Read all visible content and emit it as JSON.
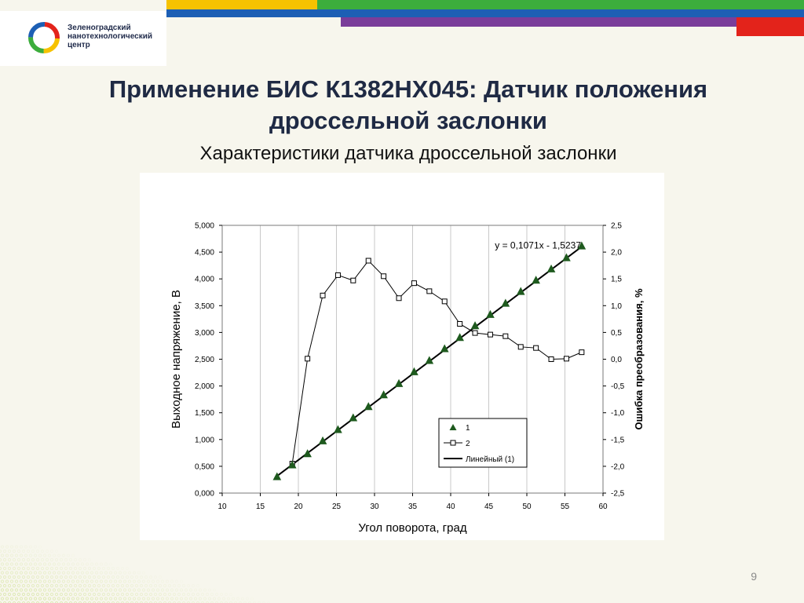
{
  "header": {
    "logo_lines": [
      "Зеленоградский",
      "нанотехнологический",
      "центр"
    ],
    "stripe_colors": [
      "#f6c200",
      "#3cad3c",
      "#1d5fb4",
      "#7a3d9a",
      "#e3231b"
    ]
  },
  "slide": {
    "title_line1": "Применение БИС К1382НХ045: Датчик положения",
    "title_line2": "дроссельной заслонки",
    "subtitle": "Характеристики датчика дроссельной заслонки",
    "page_number": "9"
  },
  "chart_data": {
    "type": "scatter",
    "xlabel": "Угол поворота, град",
    "ylabel": "Выходное напряжение, В",
    "y2label": "Ошибка преобразования, %",
    "xlim": [
      10,
      60
    ],
    "ylim": [
      0,
      5
    ],
    "y2lim": [
      -2.5,
      2.5
    ],
    "x_ticks": [
      "10",
      "15",
      "20",
      "25",
      "30",
      "35",
      "40",
      "45",
      "50",
      "55",
      "60"
    ],
    "y_ticks": [
      "0,000",
      "0,500",
      "1,000",
      "1,500",
      "2,000",
      "2,500",
      "3,000",
      "3,500",
      "4,000",
      "4,500",
      "5,000"
    ],
    "y2_ticks": [
      "-2,5",
      "-2,0",
      "-1,5",
      "-1,0",
      "-0,5",
      "0,0",
      "0,5",
      "1,0",
      "1,5",
      "2,0",
      "2,5"
    ],
    "grid": "vertical",
    "equation": "y = 0,1071x - 1,5237",
    "legend_position": "lower-right",
    "series": [
      {
        "name": "1",
        "axis": "left",
        "marker": "triangle",
        "color": "#1e5a1e",
        "x": [
          17.2,
          19.2,
          21.2,
          23.2,
          25.2,
          27.2,
          29.2,
          31.2,
          33.2,
          35.2,
          37.2,
          39.2,
          41.2,
          43.2,
          45.2,
          47.2,
          49.2,
          51.2,
          53.2,
          55.2,
          57.2
        ],
        "y": [
          0.3,
          0.52,
          0.73,
          0.97,
          1.18,
          1.4,
          1.61,
          1.83,
          2.04,
          2.26,
          2.47,
          2.69,
          2.9,
          3.12,
          3.33,
          3.54,
          3.76,
          3.97,
          4.18,
          4.39,
          4.61
        ]
      },
      {
        "name": "2",
        "axis": "right",
        "marker": "square",
        "color": "#000000",
        "x": [
          19.2,
          21.2,
          23.2,
          25.2,
          27.2,
          29.2,
          31.2,
          33.2,
          35.2,
          37.2,
          39.2,
          41.2,
          43.2,
          45.2,
          47.2,
          49.2,
          51.2,
          53.2,
          55.2,
          57.2
        ],
        "y": [
          -1.95,
          0.01,
          1.19,
          1.57,
          1.47,
          1.84,
          1.55,
          1.14,
          1.42,
          1.27,
          1.08,
          0.66,
          0.49,
          0.46,
          0.43,
          0.23,
          0.21,
          0.0,
          0.01,
          0.13
        ]
      },
      {
        "name": "Линейный (1)",
        "axis": "left",
        "marker": "line",
        "color": "#000000",
        "x": [
          17.2,
          57.2
        ],
        "y": [
          0.318,
          4.602
        ]
      }
    ]
  }
}
